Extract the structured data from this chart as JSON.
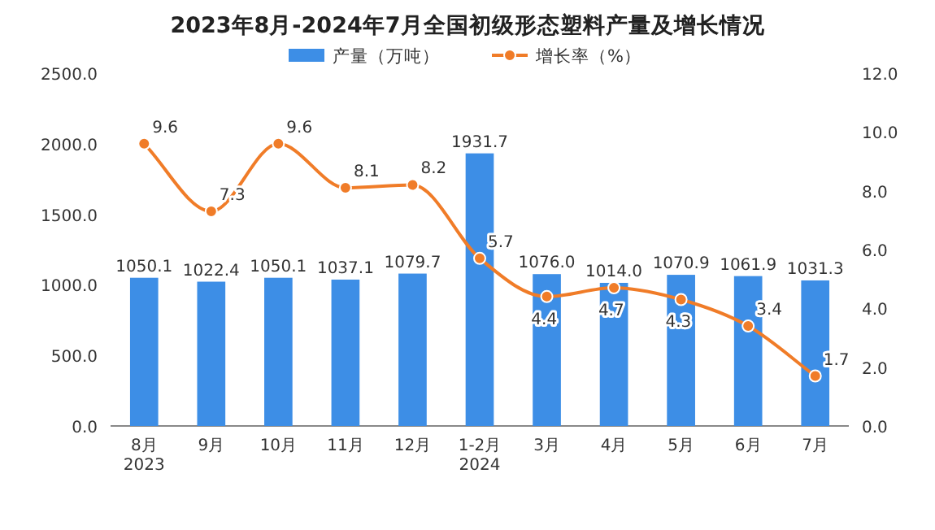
{
  "chart_data": {
    "type": "bar",
    "title": "2023年8月-2024年7月全国初级形态塑料产量及增长情况",
    "categories": [
      "8月\n2023",
      "9月",
      "10月",
      "11月",
      "12月",
      "1-2月\n2024",
      "3月",
      "4月",
      "5月",
      "6月",
      "7月"
    ],
    "series": [
      {
        "name": "产量（万吨）",
        "color": "#3d8ee6",
        "values": [
          1050.1,
          1022.4,
          1050.1,
          1037.1,
          1079.7,
          1931.7,
          1076.0,
          1014.0,
          1070.9,
          1061.9,
          1031.3
        ],
        "value_labels": [
          "1050.1",
          "1022.4",
          "1050.1",
          "1037.1",
          "1079.7",
          "1931.7",
          "1076.0",
          "1014.0",
          "1070.9",
          "1061.9",
          "1031.3"
        ]
      },
      {
        "name": "增长率（%）",
        "type": "line",
        "axis": "y2",
        "color": "#f07c28",
        "marker": "circle",
        "values": [
          9.6,
          7.3,
          9.6,
          8.1,
          8.2,
          5.7,
          4.4,
          4.7,
          4.3,
          3.4,
          1.7
        ],
        "value_labels": [
          "9.6",
          "7.3",
          "9.6",
          "8.1",
          "8.2",
          "5.7",
          "4.4",
          "4.7",
          "4.3",
          "3.4",
          "1.7"
        ]
      }
    ],
    "ylim": [
      0,
      2500
    ],
    "yticks": [
      {
        "value": 0,
        "label": "0.0"
      },
      {
        "value": 500,
        "label": "500.0"
      },
      {
        "value": 1000,
        "label": "1000.0"
      },
      {
        "value": 1500,
        "label": "1500.0"
      },
      {
        "value": 2000,
        "label": "2000.0"
      },
      {
        "value": 2500,
        "label": "2500.0"
      }
    ],
    "y2lim": [
      0,
      12
    ],
    "y2ticks": [
      {
        "value": 0,
        "label": "0.0"
      },
      {
        "value": 2,
        "label": "2.0"
      },
      {
        "value": 4,
        "label": "4.0"
      },
      {
        "value": 6,
        "label": "6.0"
      },
      {
        "value": 8,
        "label": "8.0"
      },
      {
        "value": 10,
        "label": "10.0"
      },
      {
        "value": 12,
        "label": "12.0"
      }
    ],
    "legend": "top",
    "grid": false
  }
}
